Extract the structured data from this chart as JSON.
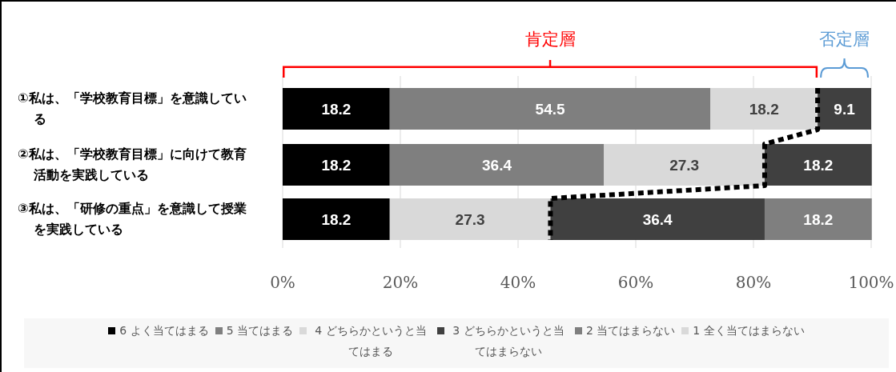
{
  "chart_data": {
    "type": "bar",
    "orientation": "horizontal",
    "stacked": true,
    "data_labels": true,
    "grid": "x",
    "legend": "bottom",
    "categories": [
      "①私は、「学校教育目標」を意識している",
      "②私は、「学校教育目標」に向けて教育活動を実践している",
      "③私は、「研修の重点」を意識して授業を実践している"
    ],
    "series": [
      {
        "name": "6 よく当てはまる",
        "color": "#000000",
        "values": [
          18.2,
          18.2,
          18.2
        ]
      },
      {
        "name": "5 当てはまる",
        "color": "#7f7f7f",
        "values": [
          54.5,
          36.4,
          null
        ]
      },
      {
        "name": "4 どちらかというと当てはまる",
        "color": "#d9d9d9",
        "values": [
          18.2,
          27.3,
          27.3
        ]
      },
      {
        "name": "3 どちらかというと当てはまらない",
        "color": "#404040",
        "values": [
          9.1,
          18.2,
          36.4
        ]
      },
      {
        "name": "2 当てはまらない",
        "color": "#7f7f7f",
        "values": [
          null,
          null,
          18.2
        ]
      },
      {
        "name": "1 全く当てはまらない",
        "color": "#d9d9d9",
        "values": [
          null,
          null,
          null
        ]
      }
    ],
    "xlim": [
      0,
      100
    ],
    "xticks": [
      {
        "value": 0,
        "label": "0%"
      },
      {
        "value": 20,
        "label": "20%"
      },
      {
        "value": 40,
        "label": "40%"
      },
      {
        "value": 60,
        "label": "60%"
      },
      {
        "value": 80,
        "label": "80%"
      },
      {
        "value": 100,
        "label": "100%"
      }
    ],
    "annotations": [
      "肯定層",
      "否定層"
    ]
  }
}
